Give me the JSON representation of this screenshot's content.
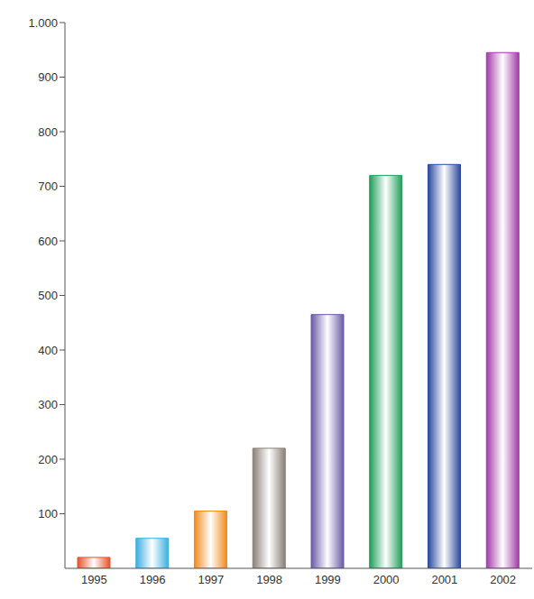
{
  "chart_data": {
    "type": "bar",
    "categories": [
      "1995",
      "1996",
      "1997",
      "1998",
      "1999",
      "2000",
      "2001",
      "2002"
    ],
    "values": [
      20,
      55,
      105,
      220,
      465,
      720,
      740,
      945
    ],
    "colors": [
      "#e8502a",
      "#3aaee0",
      "#f08a1e",
      "#8a7f78",
      "#6a5aa8",
      "#1e9e5a",
      "#2a4aa0",
      "#a23aa8"
    ],
    "ylim": [
      0,
      1000
    ],
    "yticks": [
      100,
      200,
      300,
      400,
      500,
      600,
      700,
      800,
      900,
      {
        "value": 1000,
        "label": "1.000"
      }
    ],
    "grid": false
  }
}
